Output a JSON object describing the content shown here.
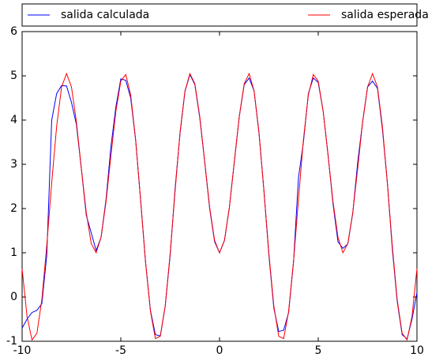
{
  "chart_data": {
    "type": "line",
    "x": [
      -10,
      -9.75,
      -9.5,
      -9.25,
      -9,
      -8.75,
      -8.5,
      -8.25,
      -8,
      -7.75,
      -7.5,
      -7.25,
      -7,
      -6.75,
      -6.5,
      -6.25,
      -6,
      -5.75,
      -5.5,
      -5.25,
      -5,
      -4.75,
      -4.5,
      -4.25,
      -4,
      -3.75,
      -3.5,
      -3.25,
      -3,
      -2.75,
      -2.5,
      -2.25,
      -2,
      -1.75,
      -1.5,
      -1.25,
      -1,
      -0.75,
      -0.5,
      -0.25,
      0,
      0.25,
      0.5,
      0.75,
      1,
      1.25,
      1.5,
      1.75,
      2,
      2.25,
      2.5,
      2.75,
      3,
      3.25,
      3.5,
      3.75,
      4,
      4.25,
      4.5,
      4.75,
      5,
      5.25,
      5.5,
      5.75,
      6,
      6.25,
      6.5,
      6.75,
      7,
      7.25,
      7.5,
      7.75,
      8,
      8.25,
      8.5,
      8.75,
      9,
      9.25,
      9.5,
      9.75,
      10
    ],
    "series": [
      {
        "name": "salida calculada",
        "color": "#0000ff",
        "values": [
          -0.7,
          -0.5,
          -0.35,
          -0.3,
          -0.15,
          0.95,
          4.0,
          4.6,
          4.78,
          4.77,
          4.4,
          3.9,
          2.9,
          1.85,
          1.45,
          1.05,
          1.35,
          2.2,
          3.4,
          4.3,
          4.93,
          4.9,
          4.5,
          3.55,
          2.2,
          0.8,
          -0.3,
          -0.85,
          -0.88,
          -0.2,
          0.95,
          2.45,
          3.7,
          4.65,
          5.03,
          4.8,
          4.05,
          3.05,
          2.0,
          1.25,
          1.0,
          1.28,
          2.03,
          3.06,
          4.08,
          4.8,
          4.95,
          4.66,
          3.7,
          2.4,
          0.95,
          -0.25,
          -0.78,
          -0.75,
          -0.35,
          0.8,
          2.7,
          3.5,
          4.6,
          4.95,
          4.85,
          4.2,
          3.2,
          2.1,
          1.25,
          1.1,
          1.2,
          1.9,
          3.05,
          3.96,
          4.75,
          4.88,
          4.72,
          3.8,
          2.59,
          1.1,
          -0.1,
          -0.85,
          -0.95,
          -0.5,
          0.1
        ]
      },
      {
        "name": "salida esperada",
        "color": "#ff0000",
        "values": [
          0.64,
          -0.44,
          -0.97,
          -0.82,
          -0.06,
          1.17,
          2.59,
          3.86,
          4.75,
          5.05,
          4.75,
          3.96,
          2.91,
          1.91,
          1.21,
          1.0,
          1.35,
          2.15,
          3.2,
          4.2,
          4.88,
          5.03,
          4.57,
          3.56,
          2.21,
          0.81,
          -0.32,
          -0.94,
          -0.89,
          -0.2,
          0.99,
          2.4,
          3.72,
          4.66,
          5.05,
          4.82,
          4.08,
          3.06,
          2.03,
          1.28,
          1,
          1.28,
          2.03,
          3.06,
          4.08,
          4.82,
          5.05,
          4.66,
          3.72,
          2.4,
          0.99,
          -0.2,
          -0.89,
          -0.94,
          -0.32,
          0.81,
          2.21,
          3.56,
          4.57,
          5.03,
          4.88,
          4.2,
          3.2,
          2.15,
          1.35,
          1.0,
          1.21,
          1.91,
          2.91,
          3.96,
          4.75,
          5.05,
          4.75,
          3.86,
          2.59,
          1.17,
          -0.06,
          -0.82,
          -0.97,
          -0.44,
          0.64
        ]
      }
    ],
    "xlim": [
      -10,
      10
    ],
    "xticks": [
      -10,
      -5,
      0,
      5,
      10
    ],
    "ylim": [
      -1,
      6
    ],
    "yticks": [
      -1,
      0,
      1,
      2,
      3,
      4,
      5,
      6
    ],
    "grid": false,
    "legend": "top"
  }
}
